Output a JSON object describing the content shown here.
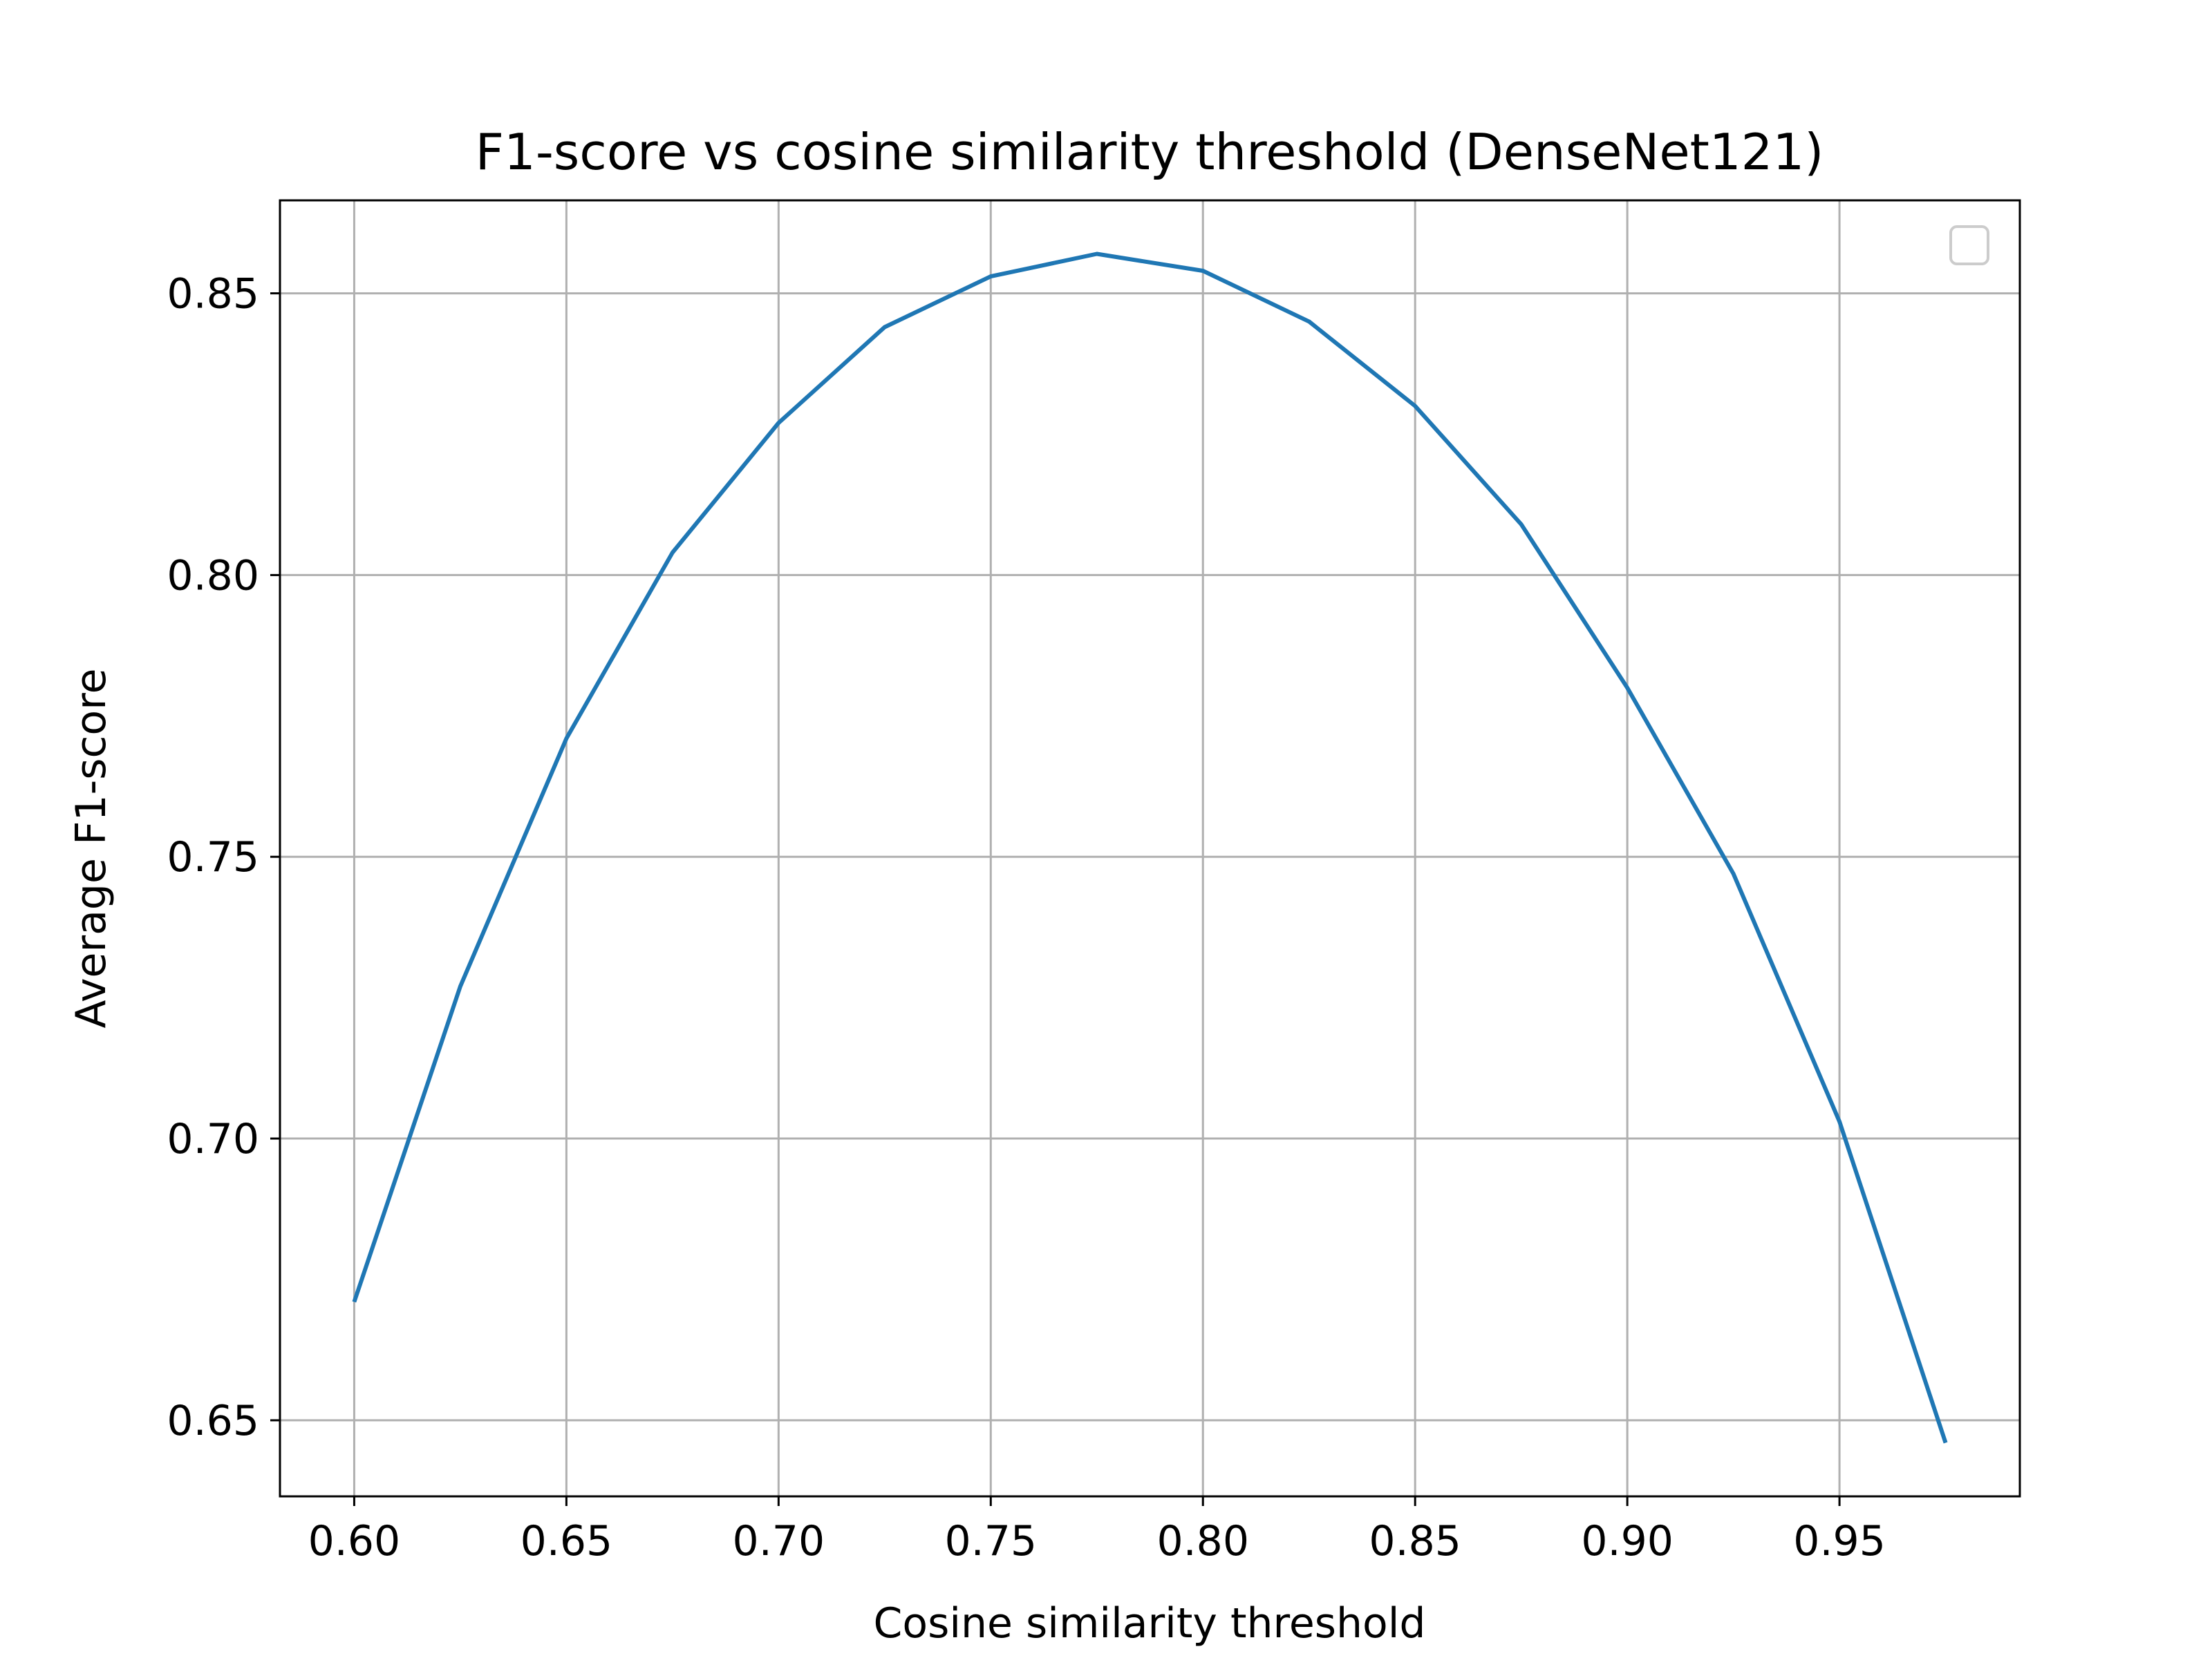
{
  "chart_data": {
    "type": "line",
    "title": "F1-score vs cosine similarity threshold (DenseNet121)",
    "xlabel": "Cosine similarity threshold",
    "ylabel": "Average F1-score",
    "xlim": [
      0.5825,
      0.9925
    ],
    "ylim": [
      0.6365,
      0.8665
    ],
    "x_ticks": [
      0.6,
      0.65,
      0.7,
      0.75,
      0.8,
      0.85,
      0.9,
      0.95
    ],
    "x_tick_labels": [
      "0.60",
      "0.65",
      "0.70",
      "0.75",
      "0.80",
      "0.85",
      "0.90",
      "0.95"
    ],
    "y_ticks": [
      0.65,
      0.7,
      0.75,
      0.8,
      0.85
    ],
    "y_tick_labels": [
      "0.65",
      "0.70",
      "0.75",
      "0.80",
      "0.85"
    ],
    "grid": true,
    "legend": "upper right (empty)",
    "series": [
      {
        "color": "#1f77b4",
        "x": [
          0.6,
          0.625,
          0.65,
          0.675,
          0.7,
          0.725,
          0.75,
          0.775,
          0.8,
          0.825,
          0.85,
          0.875,
          0.9,
          0.925,
          0.95,
          0.975
        ],
        "y": [
          0.671,
          0.727,
          0.771,
          0.804,
          0.827,
          0.844,
          0.853,
          0.857,
          0.854,
          0.845,
          0.83,
          0.809,
          0.78,
          0.747,
          0.703,
          0.646
        ]
      }
    ]
  },
  "colors": {
    "line": "#1f77b4",
    "grid": "#b0b0b0",
    "axes": "#000000",
    "legend_border": "#cccccc"
  }
}
